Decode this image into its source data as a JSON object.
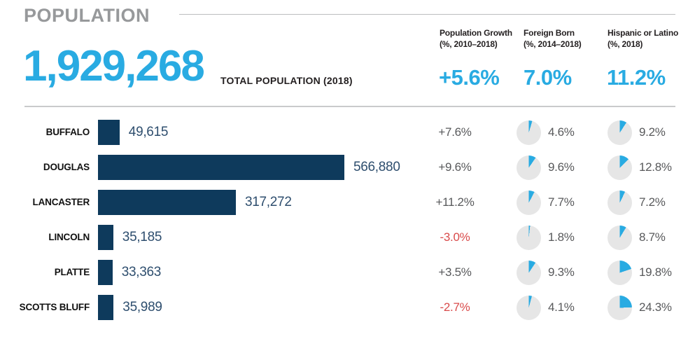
{
  "title": "POPULATION",
  "summary": {
    "total_population": "1,929,268",
    "total_population_label": "TOTAL POPULATION (2018)",
    "columns": [
      {
        "label_line1": "Population Growth",
        "label_line2": "(%, 2010–2018)",
        "value": "+5.6%"
      },
      {
        "label_line1": "Foreign Born",
        "label_line2": "(%, 2014–2018)",
        "value": "7.0%"
      },
      {
        "label_line1": "Hispanic or Latino",
        "label_line2": "(%, 2018)",
        "value": "11.2%"
      }
    ]
  },
  "colors": {
    "accent_cyan": "#29ABE2",
    "bar_navy": "#0E3A5C",
    "bar_value_text": "#2E4E6E",
    "title_gray": "#97999B",
    "row_text_gray": "#58595B",
    "negative_red": "#D94A4A",
    "pie_background": "#E6E6E6",
    "divider_gray": "#C9CACB",
    "header_black": "#231F20"
  },
  "table": {
    "rows": [
      {
        "county": "BUFFALO",
        "population": "49,615",
        "population_value": 49615,
        "growth": "+7.6%",
        "growth_color": "#58595B",
        "foreign_born": "4.6%",
        "foreign_born_value": 4.6,
        "hispanic": "9.2%",
        "hispanic_value": 9.2
      },
      {
        "county": "DOUGLAS",
        "population": "566,880",
        "population_value": 566880,
        "growth": "+9.6%",
        "growth_color": "#58595B",
        "foreign_born": "9.6%",
        "foreign_born_value": 9.6,
        "hispanic": "12.8%",
        "hispanic_value": 12.8
      },
      {
        "county": "LANCASTER",
        "population": "317,272",
        "population_value": 317272,
        "growth": "+11.2%",
        "growth_color": "#58595B",
        "foreign_born": "7.7%",
        "foreign_born_value": 7.7,
        "hispanic": "7.2%",
        "hispanic_value": 7.2
      },
      {
        "county": "LINCOLN",
        "population": "35,185",
        "population_value": 35185,
        "growth": "-3.0%",
        "growth_color": "#D94A4A",
        "foreign_born": "1.8%",
        "foreign_born_value": 1.8,
        "hispanic": "8.7%",
        "hispanic_value": 8.7
      },
      {
        "county": "PLATTE",
        "population": "33,363",
        "population_value": 33363,
        "growth": "+3.5%",
        "growth_color": "#58595B",
        "foreign_born": "9.3%",
        "foreign_born_value": 9.3,
        "hispanic": "19.8%",
        "hispanic_value": 19.8
      },
      {
        "county": "SCOTTS BLUFF",
        "population": "35,989",
        "population_value": 35989,
        "growth": "-2.7%",
        "growth_color": "#D94A4A",
        "foreign_born": "4.1%",
        "foreign_born_value": 4.1,
        "hispanic": "24.3%",
        "hispanic_value": 24.3
      }
    ]
  },
  "chart_data": {
    "type": "bar",
    "title": "POPULATION",
    "subtitle": "TOTAL POPULATION (2018): 1,929,268",
    "categories": [
      "BUFFALO",
      "DOUGLAS",
      "LANCASTER",
      "LINCOLN",
      "PLATTE",
      "SCOTTS BLUFF"
    ],
    "series": [
      {
        "name": "Total Population (2018)",
        "values": [
          49615,
          566880,
          317272,
          35185,
          33363,
          35989
        ]
      },
      {
        "name": "Population Growth (%, 2010–2018)",
        "values": [
          7.6,
          9.6,
          11.2,
          -3.0,
          3.5,
          -2.7
        ]
      },
      {
        "name": "Foreign Born (%, 2014–2018)",
        "values": [
          4.6,
          9.6,
          7.7,
          1.8,
          9.3,
          4.1
        ]
      },
      {
        "name": "Hispanic or Latino (%, 2018)",
        "values": [
          9.2,
          12.8,
          7.2,
          8.7,
          19.8,
          24.3
        ]
      }
    ],
    "totals": {
      "total_population": 1929268,
      "population_growth_pct": 5.6,
      "foreign_born_pct": 7.0,
      "hispanic_or_latino_pct": 11.2
    },
    "xlabel": "",
    "ylabel": "",
    "xlim": [
      0,
      566880
    ],
    "grid": false,
    "legend_position": "none",
    "orientation": "horizontal"
  }
}
